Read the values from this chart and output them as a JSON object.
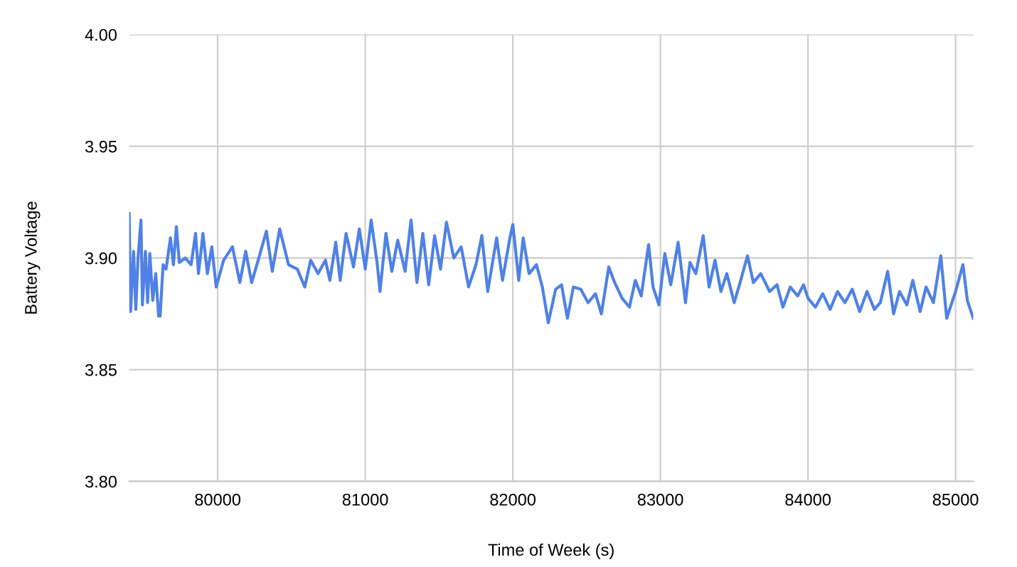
{
  "chart_data": {
    "type": "line",
    "xlabel": "Time of Week (s)",
    "ylabel": "Battery Voltage",
    "x": [
      79400,
      79410,
      79430,
      79445,
      79460,
      79480,
      79490,
      79510,
      79525,
      79540,
      79560,
      79580,
      79600,
      79610,
      79630,
      79650,
      79680,
      79700,
      79720,
      79740,
      79780,
      79820,
      79850,
      79870,
      79900,
      79930,
      79960,
      79990,
      80040,
      80100,
      80150,
      80190,
      80230,
      80270,
      80330,
      80370,
      80420,
      80480,
      80540,
      80590,
      80630,
      80680,
      80730,
      80760,
      80800,
      80830,
      80870,
      80920,
      80960,
      81000,
      81040,
      81080,
      81100,
      81140,
      81180,
      81220,
      81270,
      81310,
      81350,
      81390,
      81430,
      81470,
      81510,
      81550,
      81600,
      81650,
      81700,
      81750,
      81790,
      81830,
      81890,
      81930,
      81980,
      82000,
      82040,
      82070,
      82110,
      82160,
      82200,
      82240,
      82290,
      82330,
      82370,
      82410,
      82460,
      82510,
      82560,
      82600,
      82650,
      82690,
      82740,
      82790,
      82830,
      82870,
      82920,
      82950,
      82990,
      83030,
      83070,
      83120,
      83170,
      83200,
      83240,
      83290,
      83330,
      83370,
      83410,
      83450,
      83500,
      83540,
      83590,
      83630,
      83680,
      83740,
      83790,
      83830,
      83880,
      83930,
      83970,
      84000,
      84050,
      84100,
      84150,
      84200,
      84250,
      84300,
      84350,
      84400,
      84450,
      84490,
      84540,
      84580,
      84620,
      84670,
      84710,
      84760,
      84800,
      84850,
      84900,
      84940,
      85000,
      85050,
      85080,
      85120
    ],
    "series": [
      {
        "color": "#4f81e6",
        "values": [
          3.92,
          3.876,
          3.903,
          3.877,
          3.9,
          3.917,
          3.879,
          3.903,
          3.88,
          3.902,
          3.881,
          3.893,
          3.874,
          3.874,
          3.897,
          3.895,
          3.909,
          3.897,
          3.914,
          3.898,
          3.9,
          3.897,
          3.911,
          3.893,
          3.911,
          3.893,
          3.905,
          3.887,
          3.899,
          3.905,
          3.889,
          3.903,
          3.889,
          3.898,
          3.912,
          3.894,
          3.913,
          3.897,
          3.895,
          3.887,
          3.899,
          3.893,
          3.899,
          3.89,
          3.907,
          3.89,
          3.911,
          3.896,
          3.913,
          3.895,
          3.917,
          3.898,
          3.885,
          3.911,
          3.894,
          3.908,
          3.894,
          3.917,
          3.889,
          3.911,
          3.888,
          3.91,
          3.895,
          3.916,
          3.9,
          3.905,
          3.887,
          3.897,
          3.91,
          3.885,
          3.909,
          3.89,
          3.909,
          3.915,
          3.89,
          3.909,
          3.893,
          3.897,
          3.887,
          3.871,
          3.886,
          3.888,
          3.873,
          3.887,
          3.886,
          3.88,
          3.884,
          3.875,
          3.896,
          3.889,
          3.882,
          3.878,
          3.89,
          3.883,
          3.906,
          3.887,
          3.879,
          3.902,
          3.888,
          3.907,
          3.88,
          3.898,
          3.893,
          3.91,
          3.887,
          3.899,
          3.885,
          3.893,
          3.88,
          3.889,
          3.901,
          3.889,
          3.893,
          3.885,
          3.888,
          3.878,
          3.887,
          3.883,
          3.888,
          3.882,
          3.878,
          3.884,
          3.877,
          3.885,
          3.88,
          3.886,
          3.876,
          3.885,
          3.877,
          3.88,
          3.894,
          3.875,
          3.885,
          3.879,
          3.89,
          3.876,
          3.887,
          3.88,
          3.901,
          3.873,
          3.885,
          3.897,
          3.881,
          3.873
        ]
      }
    ],
    "xlim": [
      79400,
      85120
    ],
    "ylim": [
      3.8,
      4.0
    ],
    "xticks": [
      80000,
      81000,
      82000,
      83000,
      84000,
      85000
    ],
    "yticks": [
      {
        "value": 3.8,
        "label": "3.80"
      },
      {
        "value": 3.85,
        "label": "3.85"
      },
      {
        "value": 3.9,
        "label": "3.90"
      },
      {
        "value": 3.95,
        "label": "3.95"
      },
      {
        "value": 4.0,
        "label": "4.00"
      }
    ],
    "grid": true,
    "marker": "none",
    "line_style": "solid"
  }
}
